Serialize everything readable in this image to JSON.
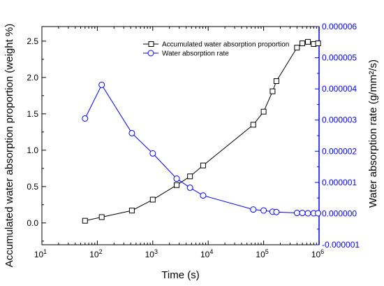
{
  "chart_data": {
    "type": "line",
    "xlabel": "Time (s)",
    "ylabel": "Accumulated water absorption proportion (weight %)",
    "y2label": "Water absorption rate (g/mm²/s)",
    "xscale": "log",
    "xlim": [
      10,
      1000000
    ],
    "ylim": [
      -0.3,
      2.7
    ],
    "y2lim": [
      -1e-06,
      6e-06
    ],
    "x_ticks": [
      "10",
      "100",
      "1000",
      "10000",
      "100000",
      "1000000"
    ],
    "x_tick_labels": [
      {
        "base": "10",
        "exp": "1"
      },
      {
        "base": "10",
        "exp": "2"
      },
      {
        "base": "10",
        "exp": "3"
      },
      {
        "base": "10",
        "exp": "4"
      },
      {
        "base": "10",
        "exp": "5"
      },
      {
        "base": "10",
        "exp": "6"
      }
    ],
    "y_ticks": [
      "0.0",
      "0.5",
      "1.0",
      "1.5",
      "2.0",
      "2.5"
    ],
    "y2_ticks": [
      "-0.000001",
      "0.000000",
      "0.000001",
      "0.000002",
      "0.000003",
      "0.000004",
      "0.000005",
      "0.000006"
    ],
    "legend_position": "top-right",
    "grid": false,
    "series": [
      {
        "name": "Accumulated water absorption proportion",
        "axis": "left",
        "color": "#000000",
        "marker": "square",
        "x": [
          60,
          120,
          420,
          1000,
          2700,
          4700,
          8100,
          65000,
          100000,
          145000,
          170000,
          400000,
          500000,
          630000,
          800000,
          960000
        ],
        "y": [
          0.03,
          0.08,
          0.17,
          0.32,
          0.52,
          0.64,
          0.79,
          1.35,
          1.53,
          1.81,
          1.95,
          2.41,
          2.47,
          2.49,
          2.46,
          2.47
        ]
      },
      {
        "name": "Water absorption rate",
        "axis": "right",
        "color": "#0000ff",
        "marker": "circle",
        "x": [
          60,
          120,
          420,
          1000,
          2700,
          4700,
          8100,
          65000,
          100000,
          145000,
          170000,
          400000,
          500000,
          630000,
          800000,
          960000
        ],
        "y": [
          3.05e-06,
          4.13e-06,
          2.58e-06,
          1.93e-06,
          1.12e-06,
          8.3e-07,
          5.8e-07,
          1.3e-07,
          1e-07,
          6e-08,
          5e-08,
          2e-08,
          2e-08,
          1e-08,
          1e-08,
          1e-08
        ]
      }
    ]
  }
}
